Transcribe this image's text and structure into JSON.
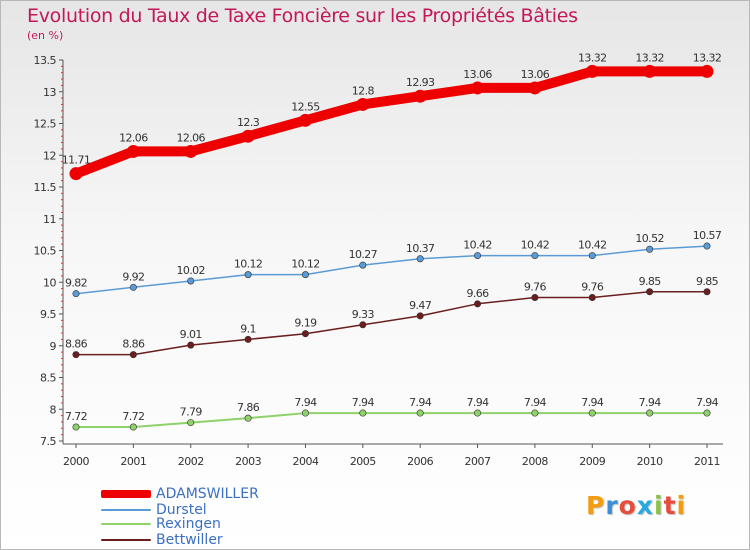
{
  "header": {
    "title": "Evolution du Taux de Taxe Foncière sur les Propriétés Bâties",
    "unit": "(en %)"
  },
  "chart_data": {
    "type": "line",
    "title": "Evolution du Taux de Taxe Foncière sur les Propriétés Bâties",
    "ylabel": "(en %)",
    "xlabel": "",
    "x": [
      "2000",
      "2001",
      "2002",
      "2003",
      "2004",
      "2005",
      "2006",
      "2007",
      "2008",
      "2009",
      "2010",
      "2011"
    ],
    "ylim": [
      7.5,
      13.5
    ],
    "yticks": [
      "7.5",
      "8",
      "8.5",
      "9",
      "9.5",
      "10",
      "10.5",
      "11",
      "11.5",
      "12",
      "12.5",
      "13",
      "13.5"
    ],
    "grid": false,
    "legend_position": "bottom-left",
    "series": [
      {
        "name": "ADAMSWILLER",
        "color": "#ee0000",
        "values": [
          11.71,
          12.06,
          12.06,
          12.3,
          12.55,
          12.8,
          12.93,
          13.06,
          13.06,
          13.32,
          13.32,
          13.32
        ],
        "labels": [
          "11.71",
          "12.06",
          "12.06",
          "12.3",
          "12.55",
          "12.8",
          "12.93",
          "13.06",
          "13.06",
          "13.32",
          "13.32",
          "13.32"
        ]
      },
      {
        "name": "Durstel",
        "color": "#5b9bd5",
        "values": [
          9.82,
          9.92,
          10.02,
          10.12,
          10.12,
          10.27,
          10.37,
          10.42,
          10.42,
          10.42,
          10.52,
          10.57
        ],
        "labels": [
          "9.82",
          "9.92",
          "10.02",
          "10.12",
          "10.12",
          "10.27",
          "10.37",
          "10.42",
          "10.42",
          "10.42",
          "10.52",
          "10.57"
        ]
      },
      {
        "name": "Rexingen",
        "color": "#8fd16a",
        "values": [
          7.72,
          7.72,
          7.79,
          7.86,
          7.94,
          7.94,
          7.94,
          7.94,
          7.94,
          7.94,
          7.94,
          7.94
        ],
        "labels": [
          "7.72",
          "7.72",
          "7.79",
          "7.86",
          "7.94",
          "7.94",
          "7.94",
          "7.94",
          "7.94",
          "7.94",
          "7.94",
          "7.94"
        ]
      },
      {
        "name": "Bettwiller",
        "color": "#6b1e1e",
        "values": [
          8.86,
          8.86,
          9.01,
          9.1,
          9.19,
          9.33,
          9.47,
          9.66,
          9.76,
          9.76,
          9.85,
          9.85
        ],
        "labels": [
          "8.86",
          "8.86",
          "9.01",
          "9.1",
          "9.19",
          "9.33",
          "9.47",
          "9.66",
          "9.76",
          "9.76",
          "9.85",
          "9.85"
        ]
      }
    ]
  },
  "legend": {
    "items": [
      {
        "label": "ADAMSWILLER",
        "color": "#ee0000"
      },
      {
        "label": "Durstel",
        "color": "#5b9bd5"
      },
      {
        "label": "Rexingen",
        "color": "#8fd16a"
      },
      {
        "label": "Bettwiller",
        "color": "#6b1e1e"
      }
    ]
  },
  "logo": {
    "text": "Proxiti",
    "letter_colors": [
      "#f39c12",
      "#3b8ed8",
      "#e74c3c",
      "#27a9e1",
      "#8bc34a",
      "#e74c3c",
      "#f39c12"
    ]
  }
}
